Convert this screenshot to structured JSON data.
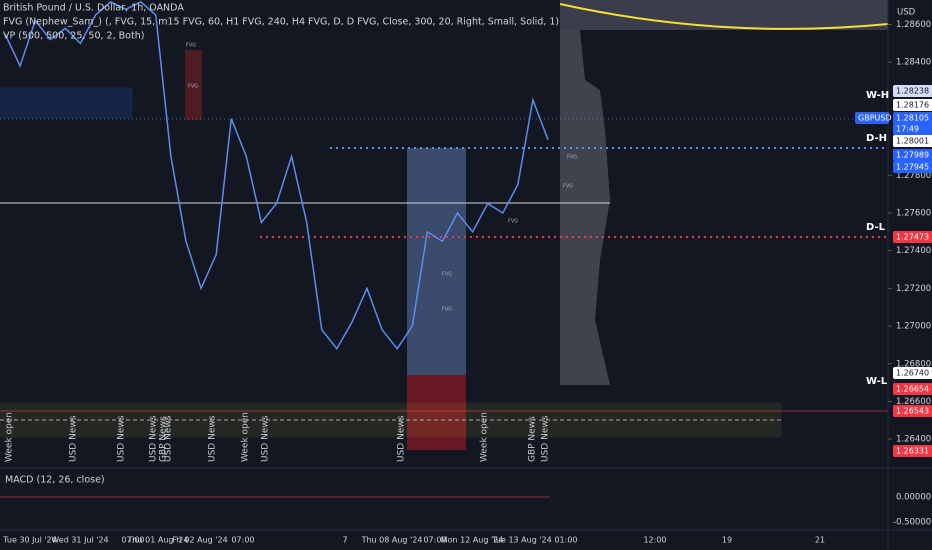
{
  "header": {
    "symbol_title": "British Pound / U.S. Dollar, 1h, OANDA",
    "fvg_indicator": "FVG (Nephew_Sam_) (, FVG, 15, m15 FVG, 60, H1 FVG, 240, H4 FVG, D, D FVG, Close, 300, 20, Right, Small, Solid, 1)",
    "vp_indicator": "VP (500, 500, 25, 50, 2, Both)",
    "currency": "USD"
  },
  "price_chart": {
    "ylim": [
      1.26247,
      1.2873
    ],
    "yticks": [
      {
        "value": 1.286,
        "label": "1.28600"
      },
      {
        "value": 1.284,
        "label": "1.28400"
      },
      {
        "value": 1.278,
        "label": "1.27800"
      },
      {
        "value": 1.276,
        "label": "1.27600"
      },
      {
        "value": 1.274,
        "label": "1.27400"
      },
      {
        "value": 1.272,
        "label": "1.27200"
      },
      {
        "value": 1.27,
        "label": "1.27000"
      },
      {
        "value": 1.268,
        "label": "1.26800"
      },
      {
        "value": 1.266,
        "label": "1.26600"
      },
      {
        "value": 1.264,
        "label": "1.26400"
      }
    ],
    "closes": [
      1.2855,
      1.2838,
      1.2862,
      1.2852,
      1.2858,
      1.285,
      1.2865,
      1.2872,
      1.2868,
      1.2872,
      1.2865,
      1.279,
      1.2745,
      1.272,
      1.2738,
      1.281,
      1.279,
      1.2755,
      1.2765,
      1.279,
      1.2755,
      1.2698,
      1.2688,
      1.2702,
      1.272,
      1.2698,
      1.2688,
      1.27,
      1.275,
      1.2745,
      1.276,
      1.275,
      1.2765,
      1.276,
      1.2775,
      1.282,
      1.27989
    ],
    "color": "#5b8def"
  },
  "level_labels": [
    "W-H",
    "D-H",
    "D-L",
    "W-L"
  ],
  "price_tags": [
    {
      "label": "1.28238",
      "color": "#d6dcf5"
    },
    {
      "label": "1.28176",
      "color": "#ffffff"
    },
    {
      "label": "GBPUSD",
      "color": "#2962ff"
    },
    {
      "label": "1.28105",
      "color": "#2962ff"
    },
    {
      "label": "17:49",
      "color": "#2962ff"
    },
    {
      "label": "1.28001",
      "color": "#ffffff"
    },
    {
      "label": "1.27989",
      "color": "#2962ff"
    },
    {
      "label": "1.27945",
      "color": "#2962ff"
    },
    {
      "label": "1.27473",
      "color": "#f23645"
    },
    {
      "label": "1.26740",
      "color": "#ffffff"
    },
    {
      "label": "1.26654",
      "color": "#f23645"
    },
    {
      "label": "1.26543",
      "color": "#f23645"
    },
    {
      "label": "1.26331",
      "color": "#f23645"
    }
  ],
  "fvg_label": "FVG",
  "events": [
    "Week open",
    "USD News",
    "USD News",
    "USD News",
    "GBP News",
    "USD News",
    "USD News",
    "Week open",
    "USD News",
    "USD News",
    "Week open",
    "GBP News",
    "USD News"
  ],
  "macd": {
    "title": "MACD (12, 26, close)",
    "ticks": [
      "0.00000",
      "-0.50000"
    ]
  },
  "time_axis": [
    "Tue 30 Jul '24",
    "Wed 31 Jul '24",
    "07:00",
    "Thu 01 Aug '24",
    "Fri 02 Aug '24",
    "07:00",
    "7",
    "Thu 08 Aug '24",
    "07:00",
    "Mon 12 Aug '24",
    "Tue 13 Aug '24",
    "01:00",
    "12:00",
    "19",
    "21"
  ]
}
